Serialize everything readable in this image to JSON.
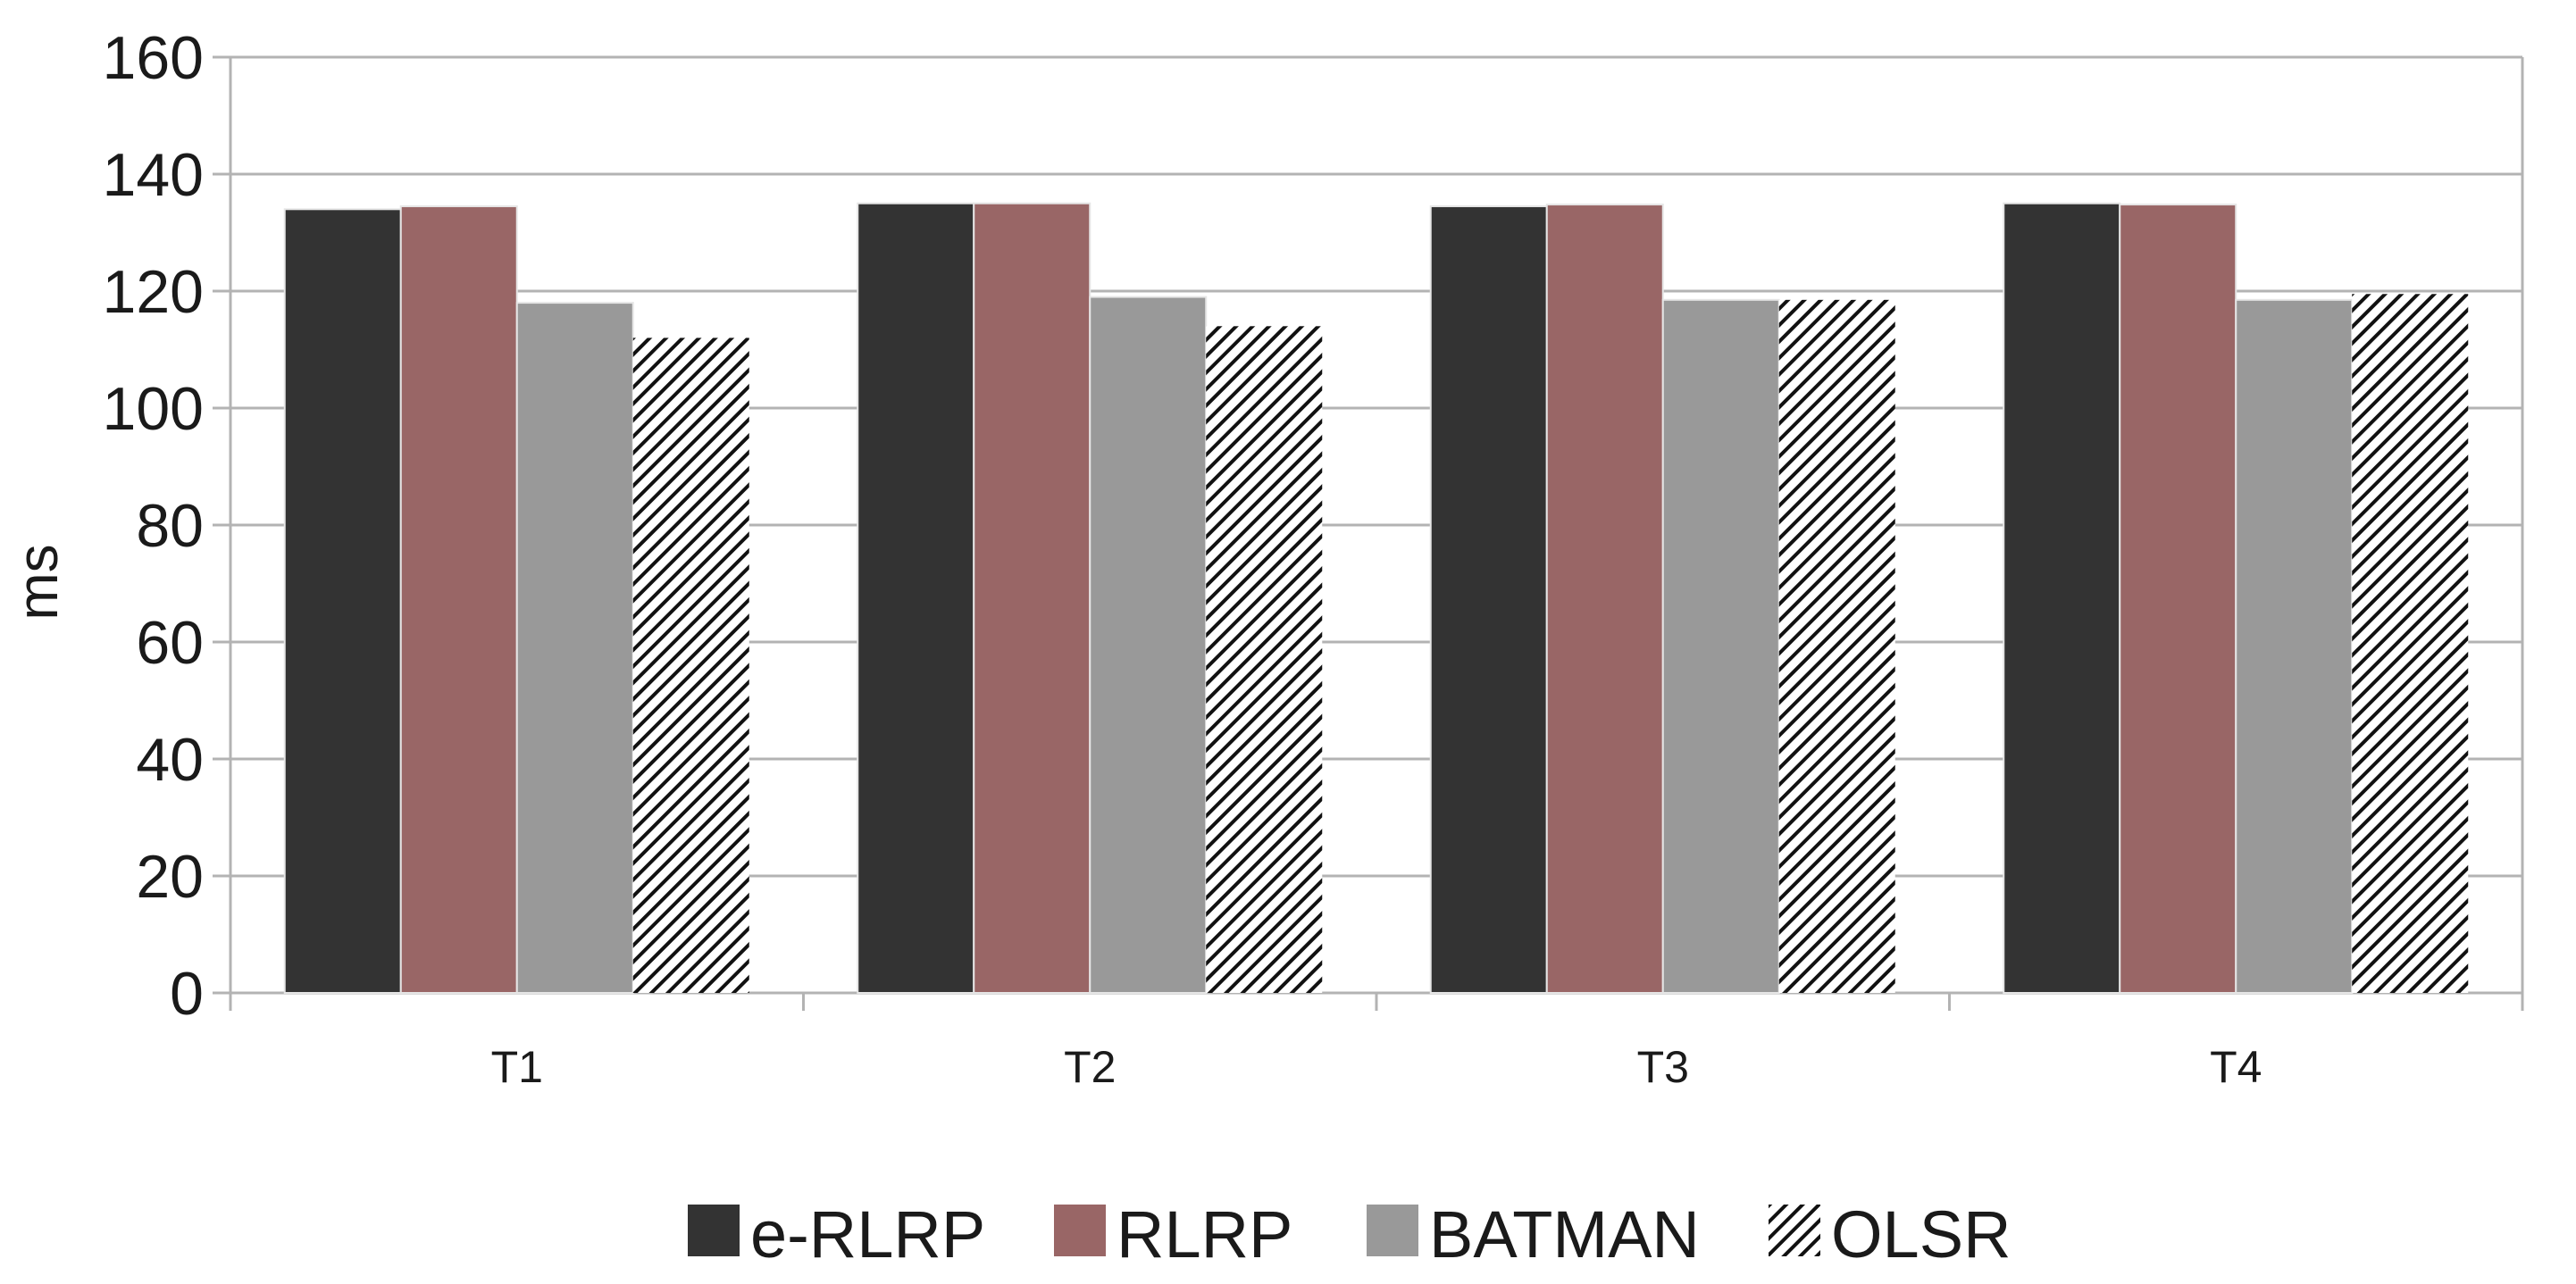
{
  "chart_data": {
    "type": "bar",
    "title": "",
    "xlabel": "",
    "ylabel": "ms",
    "ylim": [
      0,
      160
    ],
    "yticks": [
      0,
      20,
      40,
      60,
      80,
      100,
      120,
      140,
      160
    ],
    "ytick_labels": [
      "0",
      "20",
      "40",
      "60",
      "80",
      "100",
      "120",
      "140",
      "160"
    ],
    "grid": true,
    "legend_position": "bottom",
    "categories": [
      "T1",
      "T2",
      "T3",
      "T4"
    ],
    "series": [
      {
        "name": "e-RLRP",
        "values": [
          134,
          135,
          134.5,
          135
        ],
        "color": "#333333",
        "pattern": "solid"
      },
      {
        "name": "RLRP",
        "values": [
          134.5,
          135,
          134.8,
          134.8
        ],
        "color": "#996666",
        "pattern": "solid"
      },
      {
        "name": "BATMAN",
        "values": [
          118,
          119,
          118.5,
          118.5
        ],
        "color": "#999999",
        "pattern": "solid"
      },
      {
        "name": "OLSR",
        "values": [
          112,
          114,
          118.5,
          119.5
        ],
        "color": "#111111",
        "pattern": "diagonal-hatch"
      }
    ]
  }
}
